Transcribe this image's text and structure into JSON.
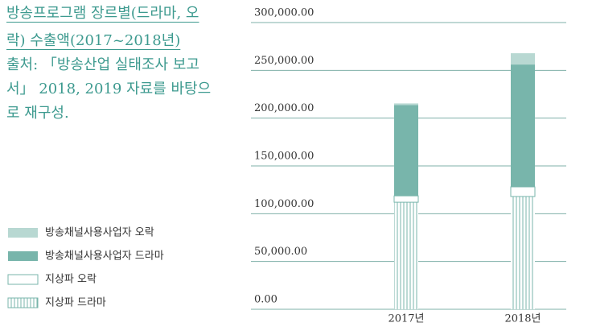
{
  "chart_data": {
    "type": "stacked-bar",
    "title": "방송프로그램 장르별(드라마, 오락) 수출액(2017~2018년)",
    "source": "출처: 「방송산업 실태조사 보고서」 2018, 2019 자료를 바탕으로 재구성.",
    "categories": [
      "2017년",
      "2018년"
    ],
    "series": [
      {
        "name": "지상파 드라마",
        "color": "#78b5ab",
        "pattern": "vertical-hatch",
        "values": [
          112000,
          118000
        ]
      },
      {
        "name": "지상파 오락",
        "color": "#ffffff",
        "values": [
          6700,
          10100
        ]
      },
      {
        "name": "방송채널사용사업자 드라마",
        "color": "#78b5ab",
        "values": [
          95000,
          128000
        ]
      },
      {
        "name": "방송채널사용사업자 오락",
        "color": "#b8d8d2",
        "values": [
          1700,
          11800
        ]
      }
    ],
    "ylim": [
      0,
      300000
    ],
    "yticks": [
      {
        "value": 0,
        "label": "0.00"
      },
      {
        "value": 50000,
        "label": "50,000.00"
      },
      {
        "value": 100000,
        "label": "100,000.00"
      },
      {
        "value": 150000,
        "label": "150,000.00"
      },
      {
        "value": 200000,
        "label": "200,000.00"
      },
      {
        "value": 250000,
        "label": "250,000.00"
      },
      {
        "value": 300000,
        "label": "300,000.00"
      }
    ],
    "grid": true
  }
}
